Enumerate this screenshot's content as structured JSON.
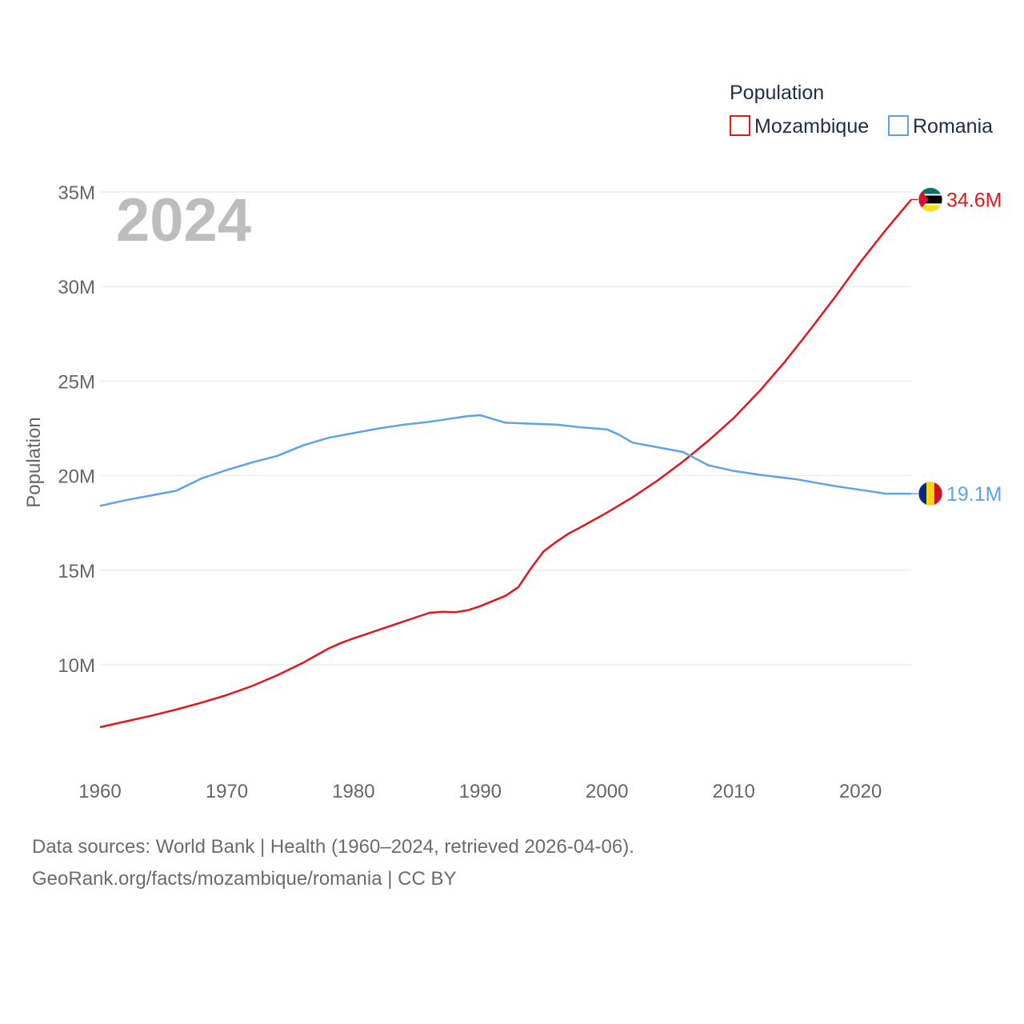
{
  "chart_data": {
    "type": "line",
    "ylabel": "Population",
    "legend_title": "Population",
    "year_label": "2024",
    "x_ticks": [
      "1960",
      "1970",
      "1980",
      "1990",
      "2000",
      "2010",
      "2020"
    ],
    "y_ticks": [
      {
        "value": 10000000,
        "label": "10M"
      },
      {
        "value": 15000000,
        "label": "15M"
      },
      {
        "value": 20000000,
        "label": "20M"
      },
      {
        "value": 25000000,
        "label": "25M"
      },
      {
        "value": 30000000,
        "label": "30M"
      },
      {
        "value": 35000000,
        "label": "35M"
      }
    ],
    "xlim": [
      1960,
      2024
    ],
    "ylim": [
      5000000,
      35000000
    ],
    "series": [
      {
        "name": "Mozambique",
        "color": "#e8141c",
        "end_label": "34.6M",
        "flag": "mozambique-flag-icon",
        "x": [
          1960,
          1962,
          1964,
          1966,
          1968,
          1970,
          1972,
          1974,
          1976,
          1978,
          1979,
          1980,
          1981,
          1982,
          1984,
          1986,
          1987,
          1988,
          1989,
          1990,
          1992,
          1993,
          1994,
          1995,
          1996,
          1997,
          1998,
          2000,
          2002,
          2004,
          2006,
          2008,
          2010,
          2012,
          2014,
          2016,
          2018,
          2020,
          2022,
          2024
        ],
        "y": [
          6700000,
          7000000,
          7300000,
          7630000,
          8000000,
          8400000,
          8880000,
          9450000,
          10100000,
          10850000,
          11150000,
          11400000,
          11620000,
          11850000,
          12300000,
          12750000,
          12800000,
          12780000,
          12880000,
          13100000,
          13650000,
          14100000,
          15100000,
          16000000,
          16500000,
          16950000,
          17300000,
          18050000,
          18850000,
          19750000,
          20750000,
          21850000,
          23050000,
          24450000,
          26000000,
          27700000,
          29450000,
          31300000,
          33000000,
          34600000
        ]
      },
      {
        "name": "Romania",
        "color": "#5fa2e8",
        "end_label": "19.1M",
        "flag": "romania-flag-icon",
        "x": [
          1960,
          1962,
          1964,
          1966,
          1968,
          1970,
          1972,
          1974,
          1976,
          1978,
          1980,
          1982,
          1984,
          1986,
          1988,
          1989,
          1990,
          1992,
          1994,
          1996,
          1998,
          2000,
          2001,
          2002,
          2004,
          2006,
          2007,
          2008,
          2010,
          2012,
          2015,
          2018,
          2020,
          2021,
          2022,
          2024
        ],
        "y": [
          18400000,
          18700000,
          18950000,
          19200000,
          19850000,
          20300000,
          20700000,
          21050000,
          21600000,
          22000000,
          22250000,
          22500000,
          22700000,
          22850000,
          23050000,
          23150000,
          23200000,
          22800000,
          22750000,
          22700000,
          22550000,
          22450000,
          22150000,
          21750000,
          21500000,
          21250000,
          20900000,
          20550000,
          20250000,
          20050000,
          19800000,
          19450000,
          19250000,
          19150000,
          19050000,
          19050000
        ]
      }
    ]
  },
  "footer": {
    "line1": "Data sources: World Bank | Health (1960–2024, retrieved 2026-04-06).",
    "line2": "GeoRank.org/facts/mozambique/romania | CC BY"
  }
}
